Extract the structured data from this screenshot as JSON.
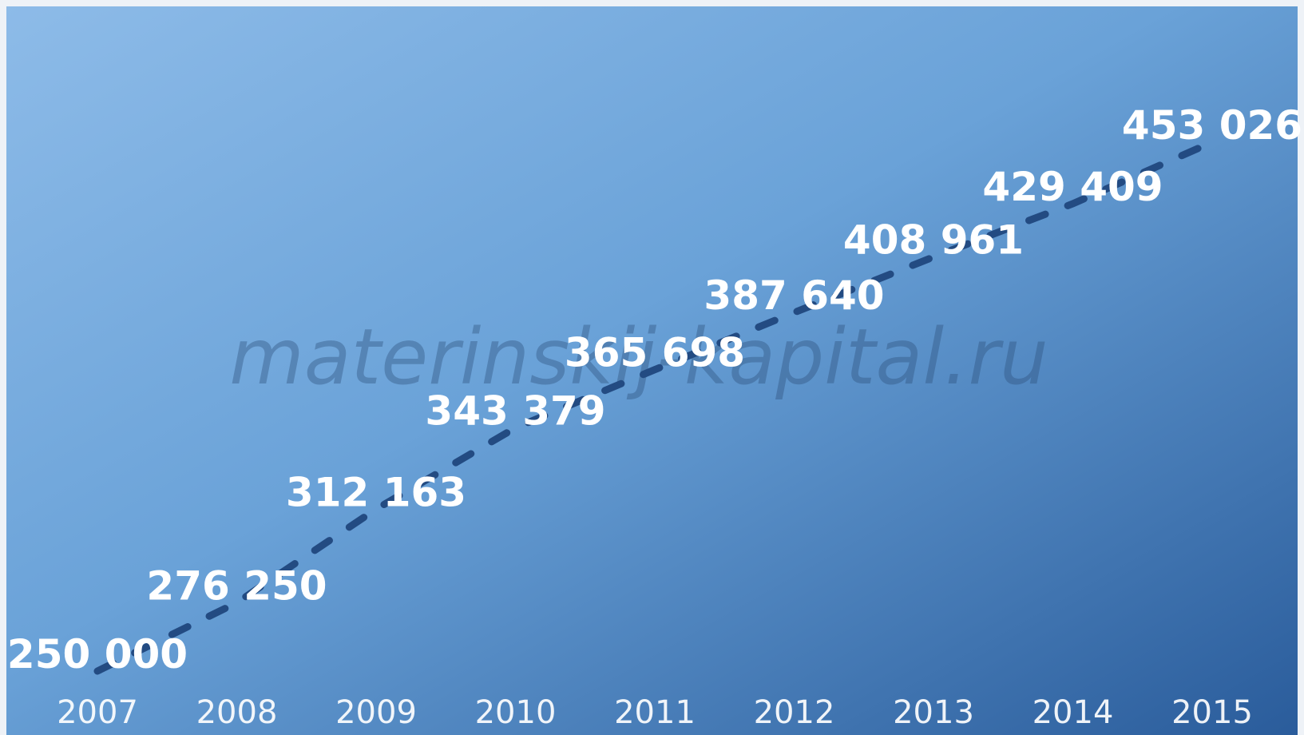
{
  "watermark": "materinskij-kapital.ru",
  "colors": {
    "bg_light": "#86b6e6",
    "bg_dark": "#2a5d9c",
    "trend": "#234b82",
    "stem": "#ffffff",
    "text": "#ffffff"
  },
  "chart_data": {
    "type": "line",
    "title": "",
    "xlabel": "",
    "ylabel": "",
    "x": [
      "2007",
      "2008",
      "2009",
      "2010",
      "2011",
      "2012",
      "2013",
      "2014",
      "2015"
    ],
    "values": [
      250000,
      276250,
      312163,
      343379,
      365698,
      387640,
      408961,
      429409,
      453026
    ],
    "value_labels": [
      "250 000",
      "276 250",
      "312 163",
      "343 379",
      "365 698",
      "387 640",
      "408 961",
      "429 409",
      "453 026"
    ],
    "ylim": [
      230000,
      460000
    ],
    "grid": false,
    "legend": "none"
  }
}
